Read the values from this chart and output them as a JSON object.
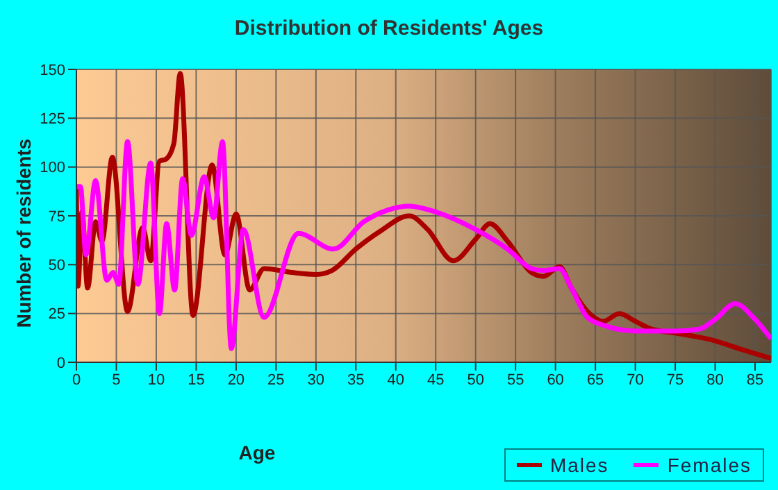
{
  "chart_data": {
    "type": "line",
    "title": "Distribution of Residents' Ages",
    "xlabel": "Age",
    "ylabel": "Number of residents",
    "xlim": [
      0,
      87
    ],
    "xticks": [
      0,
      5,
      10,
      15,
      20,
      25,
      30,
      35,
      40,
      45,
      50,
      55,
      60,
      65,
      70,
      75,
      80,
      85
    ],
    "ylim": [
      0,
      150
    ],
    "yticks": [
      0,
      25,
      50,
      75,
      100,
      125,
      150
    ],
    "grid": true,
    "legend": "bottom right",
    "marker": "none",
    "line_style": "solid",
    "series": [
      {
        "name": "Males",
        "color": "#aa0000",
        "x": [
          0,
          0.2,
          0.7,
          1.4,
          2.4,
          3.2,
          4.5,
          6.4,
          8.3,
          9.3,
          10.4,
          11.2,
          12.2,
          13,
          14.6,
          17,
          18.6,
          20,
          21.7,
          23.5,
          27,
          30,
          32,
          35,
          38,
          41.7,
          44,
          47.2,
          50,
          51.8,
          54,
          57,
          58.5,
          60.5,
          62,
          64,
          66,
          68,
          70,
          72,
          75,
          80,
          83,
          87
        ],
        "values": [
          90,
          39,
          77,
          38,
          72,
          62,
          105,
          26,
          69,
          52,
          103,
          104,
          112,
          148,
          24,
          101,
          55,
          76,
          37,
          48,
          46,
          45,
          47,
          58,
          67,
          75,
          68,
          52,
          63,
          71,
          62,
          46,
          44,
          49,
          38,
          26,
          21,
          25,
          21,
          17,
          15,
          11,
          7,
          2
        ]
      },
      {
        "name": "Females",
        "color": "#ff00ff",
        "x": [
          0,
          0.5,
          1.2,
          2.4,
          3.8,
          4.6,
          5.3,
          6.4,
          7.7,
          9.3,
          10.4,
          11.3,
          12.3,
          13.3,
          14.4,
          16,
          17.2,
          18.3,
          19.4,
          20.9,
          23.5,
          27.8,
          32.2,
          36,
          39,
          41.7,
          45,
          50,
          54,
          57,
          58.5,
          60.5,
          62,
          64,
          66,
          70,
          75,
          78,
          80,
          82.5,
          85,
          87
        ],
        "values": [
          90,
          90,
          55,
          93,
          42,
          46,
          40,
          113,
          40,
          102,
          25,
          71,
          37,
          94,
          65,
          95,
          74,
          113,
          7,
          68,
          23,
          66,
          58,
          72,
          78,
          80,
          77,
          68,
          58,
          48,
          47,
          48,
          38,
          23,
          19,
          16,
          16,
          17,
          22,
          30,
          22,
          12
        ]
      }
    ]
  }
}
